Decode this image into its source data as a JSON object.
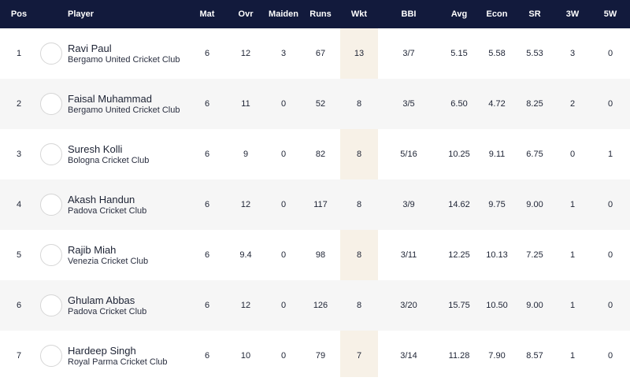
{
  "columns": {
    "pos": "Pos",
    "player": "Player",
    "mat": "Mat",
    "ovr": "Ovr",
    "maiden": "Maiden",
    "runs": "Runs",
    "wkt": "Wkt",
    "bbi": "BBI",
    "avg": "Avg",
    "econ": "Econ",
    "sr": "SR",
    "w3": "3W",
    "w5": "5W"
  },
  "rows": [
    {
      "pos": "1",
      "name": "Ravi Paul",
      "club": "Bergamo United Cricket Club",
      "mat": "6",
      "ovr": "12",
      "maiden": "3",
      "runs": "67",
      "wkt": "13",
      "bbi": "3/7",
      "avg": "5.15",
      "econ": "5.58",
      "sr": "5.53",
      "w3": "3",
      "w5": "0"
    },
    {
      "pos": "2",
      "name": "Faisal Muhammad",
      "club": "Bergamo United Cricket Club",
      "mat": "6",
      "ovr": "11",
      "maiden": "0",
      "runs": "52",
      "wkt": "8",
      "bbi": "3/5",
      "avg": "6.50",
      "econ": "4.72",
      "sr": "8.25",
      "w3": "2",
      "w5": "0"
    },
    {
      "pos": "3",
      "name": "Suresh Kolli",
      "club": "Bologna Cricket Club",
      "mat": "6",
      "ovr": "9",
      "maiden": "0",
      "runs": "82",
      "wkt": "8",
      "bbi": "5/16",
      "avg": "10.25",
      "econ": "9.11",
      "sr": "6.75",
      "w3": "0",
      "w5": "1"
    },
    {
      "pos": "4",
      "name": "Akash Handun",
      "club": "Padova Cricket Club",
      "mat": "6",
      "ovr": "12",
      "maiden": "0",
      "runs": "117",
      "wkt": "8",
      "bbi": "3/9",
      "avg": "14.62",
      "econ": "9.75",
      "sr": "9.00",
      "w3": "1",
      "w5": "0"
    },
    {
      "pos": "5",
      "name": "Rajib Miah",
      "club": "Venezia Cricket Club",
      "mat": "6",
      "ovr": "9.4",
      "maiden": "0",
      "runs": "98",
      "wkt": "8",
      "bbi": "3/11",
      "avg": "12.25",
      "econ": "10.13",
      "sr": "7.25",
      "w3": "1",
      "w5": "0"
    },
    {
      "pos": "6",
      "name": "Ghulam Abbas",
      "club": "Padova Cricket Club",
      "mat": "6",
      "ovr": "12",
      "maiden": "0",
      "runs": "126",
      "wkt": "8",
      "bbi": "3/20",
      "avg": "15.75",
      "econ": "10.50",
      "sr": "9.00",
      "w3": "1",
      "w5": "0"
    },
    {
      "pos": "7",
      "name": "Hardeep Singh",
      "club": "Royal Parma Cricket Club",
      "mat": "6",
      "ovr": "10",
      "maiden": "0",
      "runs": "79",
      "wkt": "7",
      "bbi": "3/14",
      "avg": "11.28",
      "econ": "7.90",
      "sr": "8.57",
      "w3": "1",
      "w5": "0"
    }
  ]
}
